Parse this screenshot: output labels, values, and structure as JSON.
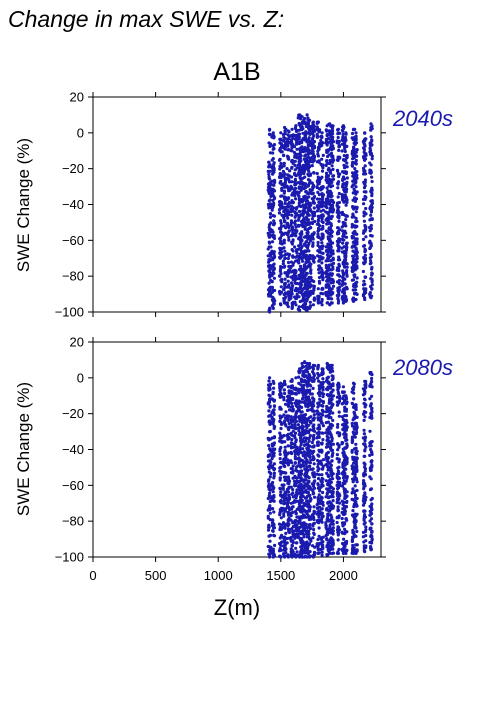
{
  "page_title": "Change in max SWE vs. Z:",
  "scenario_label": "A1B",
  "colors": {
    "points": "#1a1aaf",
    "label": "#1a1aaf",
    "axes": "#000000"
  },
  "chart_data": [
    {
      "type": "scatter",
      "title": "2040s",
      "ylabel": "SWE Change (%)",
      "xlabel": "",
      "xlim": [
        0,
        2300
      ],
      "ylim": [
        -100,
        20
      ],
      "yticks": [
        "20",
        "0",
        "−20",
        "−40",
        "−60",
        "−80",
        "−100"
      ],
      "ytick_values": [
        20,
        0,
        -20,
        -40,
        -60,
        -80,
        -100
      ],
      "xticks": [],
      "xtick_values": [
        0,
        500,
        1000,
        1500,
        2000
      ],
      "columns": [
        {
          "x": 1410,
          "ymin": -100,
          "ymax": 2
        },
        {
          "x": 1440,
          "ymin": -98,
          "ymax": 0
        },
        {
          "x": 1500,
          "ymin": -96,
          "ymax": 0
        },
        {
          "x": 1530,
          "ymin": -95,
          "ymax": 3
        },
        {
          "x": 1560,
          "ymin": -97,
          "ymax": 1
        },
        {
          "x": 1590,
          "ymin": -98,
          "ymax": 2
        },
        {
          "x": 1620,
          "ymin": -96,
          "ymax": 4
        },
        {
          "x": 1650,
          "ymin": -99,
          "ymax": 10
        },
        {
          "x": 1670,
          "ymin": -97,
          "ymax": 9
        },
        {
          "x": 1690,
          "ymin": -98,
          "ymax": 8
        },
        {
          "x": 1710,
          "ymin": -99,
          "ymax": 10
        },
        {
          "x": 1730,
          "ymin": -98,
          "ymax": 7
        },
        {
          "x": 1760,
          "ymin": -96,
          "ymax": 6
        },
        {
          "x": 1800,
          "ymin": -95,
          "ymax": 6
        },
        {
          "x": 1830,
          "ymin": -96,
          "ymax": 0
        },
        {
          "x": 1870,
          "ymin": -95,
          "ymax": 4
        },
        {
          "x": 1890,
          "ymin": -96,
          "ymax": 5
        },
        {
          "x": 1910,
          "ymin": -95,
          "ymax": 4
        },
        {
          "x": 1960,
          "ymin": -95,
          "ymax": 2
        },
        {
          "x": 2000,
          "ymin": -95,
          "ymax": 4
        },
        {
          "x": 2020,
          "ymin": -94,
          "ymax": 0
        },
        {
          "x": 2080,
          "ymin": -94,
          "ymax": 2
        },
        {
          "x": 2100,
          "ymin": -93,
          "ymax": 0
        },
        {
          "x": 2170,
          "ymin": -93,
          "ymax": 0
        },
        {
          "x": 2220,
          "ymin": -92,
          "ymax": 5
        }
      ]
    },
    {
      "type": "scatter",
      "title": "2080s",
      "ylabel": "SWE Change (%)",
      "xlabel": "Z(m)",
      "xlim": [
        0,
        2300
      ],
      "ylim": [
        -100,
        20
      ],
      "yticks": [
        "20",
        "0",
        "−20",
        "−40",
        "−60",
        "−80",
        "−100"
      ],
      "ytick_values": [
        20,
        0,
        -20,
        -40,
        -60,
        -80,
        -100
      ],
      "xticks": [
        "0",
        "500",
        "1000",
        "1500",
        "2000"
      ],
      "xtick_values": [
        0,
        500,
        1000,
        1500,
        2000
      ],
      "columns": [
        {
          "x": 1410,
          "ymin": -100,
          "ymax": 0
        },
        {
          "x": 1440,
          "ymin": -100,
          "ymax": -2
        },
        {
          "x": 1500,
          "ymin": -100,
          "ymax": -3
        },
        {
          "x": 1530,
          "ymin": -100,
          "ymax": -2
        },
        {
          "x": 1560,
          "ymin": -100,
          "ymax": -5
        },
        {
          "x": 1590,
          "ymin": -100,
          "ymax": -1
        },
        {
          "x": 1620,
          "ymin": -100,
          "ymax": 0
        },
        {
          "x": 1650,
          "ymin": -100,
          "ymax": 5
        },
        {
          "x": 1670,
          "ymin": -100,
          "ymax": 8
        },
        {
          "x": 1690,
          "ymin": -100,
          "ymax": 9
        },
        {
          "x": 1710,
          "ymin": -100,
          "ymax": 8
        },
        {
          "x": 1730,
          "ymin": -100,
          "ymax": 8
        },
        {
          "x": 1760,
          "ymin": -100,
          "ymax": 7
        },
        {
          "x": 1800,
          "ymin": -98,
          "ymax": 7
        },
        {
          "x": 1830,
          "ymin": -99,
          "ymax": 5
        },
        {
          "x": 1870,
          "ymin": -99,
          "ymax": 8
        },
        {
          "x": 1890,
          "ymin": -98,
          "ymax": 7
        },
        {
          "x": 1910,
          "ymin": -98,
          "ymax": 7
        },
        {
          "x": 1960,
          "ymin": -98,
          "ymax": -3
        },
        {
          "x": 2000,
          "ymin": -98,
          "ymax": -5
        },
        {
          "x": 2020,
          "ymin": -98,
          "ymax": -10
        },
        {
          "x": 2080,
          "ymin": -98,
          "ymax": -3
        },
        {
          "x": 2100,
          "ymin": -98,
          "ymax": -15
        },
        {
          "x": 2170,
          "ymin": -97,
          "ymax": -2
        },
        {
          "x": 2220,
          "ymin": -96,
          "ymax": 3
        }
      ]
    }
  ]
}
